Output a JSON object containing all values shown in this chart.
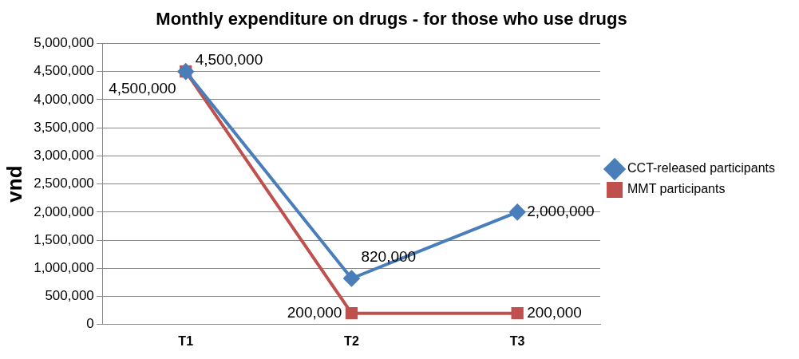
{
  "chart_data": {
    "type": "line",
    "title": "Monthly expenditure on drugs - for those who use drugs",
    "ylabel": "vnd",
    "categories": [
      "T1",
      "T2",
      "T3"
    ],
    "series": [
      {
        "name": "CCT-released participants",
        "color": "#4a7ebb",
        "marker": "diamond",
        "values": [
          4500000,
          820000,
          2000000
        ],
        "value_labels": [
          "4,500,000",
          "820,000",
          "2,000,000"
        ]
      },
      {
        "name": "MMT participants",
        "color": "#c0504d",
        "marker": "square",
        "values": [
          4500000,
          200000,
          200000
        ],
        "value_labels": [
          "4,500,000",
          "200,000",
          "200,000"
        ]
      }
    ],
    "ylim": [
      0,
      5000000
    ],
    "yticks": [
      {
        "value": 0,
        "label": "0"
      },
      {
        "value": 500000,
        "label": "500,000"
      },
      {
        "value": 1000000,
        "label": "1,000,000"
      },
      {
        "value": 1500000,
        "label": "1,500,000"
      },
      {
        "value": 2000000,
        "label": "2,000,000"
      },
      {
        "value": 2500000,
        "label": "2,500,000"
      },
      {
        "value": 3000000,
        "label": "3,000,000"
      },
      {
        "value": 3500000,
        "label": "3,500,000"
      },
      {
        "value": 4000000,
        "label": "4,000,000"
      },
      {
        "value": 4500000,
        "label": "4,500,000"
      },
      {
        "value": 5000000,
        "label": "5,000,000"
      }
    ],
    "grid": "y",
    "legend": "right",
    "line_style": "solid"
  }
}
